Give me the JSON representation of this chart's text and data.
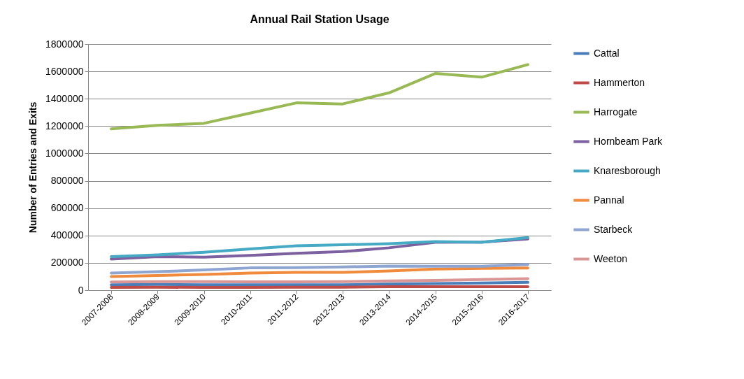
{
  "chart_data": {
    "type": "line",
    "title": "Annual Rail Station Usage",
    "ylabel": "Number of Entries and Exits",
    "categories": [
      "2007-2008",
      "2008-2009",
      "2009-2010",
      "2010-2011",
      "2011-2012",
      "2012-2013",
      "2013-2014",
      "2014-2015",
      "2015-2016",
      "2016-2017"
    ],
    "series": [
      {
        "name": "Cattal",
        "color": "#4a7ebb",
        "values": [
          40000,
          42000,
          40000,
          40000,
          40000,
          40000,
          45000,
          48000,
          52000,
          57000
        ]
      },
      {
        "name": "Hammerton",
        "color": "#be4b48",
        "values": [
          20000,
          22000,
          20000,
          20000,
          22000,
          22000,
          25000,
          26000,
          26000,
          25000
        ]
      },
      {
        "name": "Harrogate",
        "color": "#98b954",
        "values": [
          1180000,
          1205000,
          1220000,
          1295000,
          1370000,
          1362000,
          1443000,
          1585000,
          1558000,
          1650000
        ]
      },
      {
        "name": "Hornbeam Park",
        "color": "#7d60a0",
        "values": [
          228000,
          245000,
          242000,
          255000,
          270000,
          282000,
          310000,
          350000,
          352000,
          375000
        ]
      },
      {
        "name": "Knaresborough",
        "color": "#46aac5",
        "values": [
          245000,
          258000,
          278000,
          302000,
          325000,
          332000,
          340000,
          355000,
          350000,
          385000
        ]
      },
      {
        "name": "Pannal",
        "color": "#f08a3c",
        "values": [
          100000,
          108000,
          115000,
          125000,
          130000,
          130000,
          140000,
          155000,
          160000,
          162000
        ]
      },
      {
        "name": "Starbeck",
        "color": "#8ea5d1",
        "values": [
          125000,
          135000,
          148000,
          163000,
          165000,
          170000,
          177000,
          175000,
          175000,
          188000
        ]
      },
      {
        "name": "Weeton",
        "color": "#d99694",
        "values": [
          60000,
          63000,
          63000,
          62000,
          62000,
          63000,
          68000,
          72000,
          78000,
          85000
        ]
      }
    ],
    "ylim": [
      0,
      1800000
    ],
    "yticks": [
      0,
      200000,
      400000,
      600000,
      800000,
      1000000,
      1200000,
      1400000,
      1600000,
      1800000
    ],
    "grid": "y",
    "legend": "right",
    "marker": "none",
    "line_style": "solid"
  }
}
